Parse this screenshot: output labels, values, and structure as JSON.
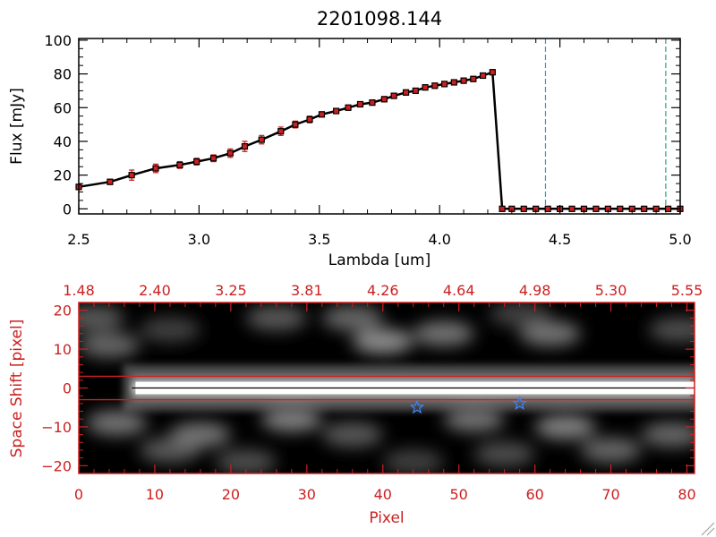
{
  "figure_title": "2201098.144",
  "colors": {
    "spectrum_line": "#000000",
    "marker": "#cc2020",
    "errorbar": "#cc2020",
    "lower_axes": "#cc2020",
    "vline_blue": "#3399dd",
    "vline_green": "#22aa77",
    "star_marker": "#3b82f6",
    "image_background": "#000000"
  },
  "chart_data": [
    {
      "type": "line",
      "title": "2201098.144",
      "xlabel": "Lambda [um]",
      "ylabel": "Flux [mJy]",
      "xlim": [
        2.5,
        5.0
      ],
      "ylim": [
        -3,
        101
      ],
      "xticks": [
        2.5,
        3.0,
        3.5,
        4.0,
        4.5,
        5.0
      ],
      "xtick_labels": [
        "2.5",
        "3.0",
        "3.5",
        "4.0",
        "4.5",
        "5.0"
      ],
      "yticks": [
        0,
        20,
        40,
        60,
        80,
        100
      ],
      "ytick_labels": [
        "0",
        "20",
        "40",
        "60",
        "80",
        "100"
      ],
      "grid": false,
      "vertical_lines": [
        {
          "x": 4.44,
          "style": "dashed",
          "color": "#3399dd"
        },
        {
          "x": 4.94,
          "style": "dashed",
          "color": "#22aa77"
        }
      ],
      "series": [
        {
          "x": [
            2.5,
            2.63,
            2.72,
            2.82,
            2.92,
            2.99,
            3.06,
            3.13,
            3.19,
            3.26,
            3.34,
            3.4,
            3.46,
            3.51,
            3.57,
            3.62,
            3.67,
            3.72,
            3.77,
            3.81,
            3.86,
            3.9,
            3.94,
            3.98,
            4.02,
            4.06,
            4.1,
            4.14,
            4.18,
            4.22,
            4.26,
            4.3,
            4.35,
            4.4,
            4.45,
            4.5,
            4.55,
            4.6,
            4.65,
            4.7,
            4.75,
            4.8,
            4.85,
            4.9,
            4.95,
            5.0
          ],
          "y": [
            13,
            16,
            20,
            24,
            26,
            28,
            30,
            33,
            37,
            41,
            46,
            50,
            53,
            56,
            58,
            60,
            62,
            63,
            65,
            67,
            69,
            70,
            72,
            73,
            74,
            75,
            76,
            77,
            79,
            81,
            0,
            0,
            0,
            0,
            0,
            0,
            0,
            0,
            0,
            0,
            0,
            0,
            0,
            0,
            0,
            0
          ],
          "yerr": [
            1.5,
            1.5,
            3,
            2.5,
            2,
            2,
            2,
            2.5,
            3,
            2.5,
            2.5,
            2,
            2,
            1.5,
            1.5,
            1.5,
            1.5,
            1.5,
            1.5,
            1.5,
            1.5,
            1.5,
            1.5,
            1.5,
            1.5,
            1.5,
            1.5,
            1.5,
            1.5,
            1.5,
            0,
            0,
            0,
            0,
            0,
            0,
            0,
            0,
            0,
            0,
            0,
            0,
            0,
            0,
            0,
            0
          ]
        }
      ]
    },
    {
      "type": "heatmap",
      "xlabel": "Pixel",
      "ylabel": "Space Shift [pixel]",
      "xlim": [
        0,
        81
      ],
      "ylim": [
        -22,
        22
      ],
      "xticks": [
        0,
        10,
        20,
        30,
        40,
        50,
        60,
        70,
        80
      ],
      "xtick_labels": [
        "0",
        "10",
        "20",
        "30",
        "40",
        "50",
        "60",
        "70",
        "80"
      ],
      "yticks": [
        -20,
        -10,
        0,
        10,
        20
      ],
      "ytick_labels": [
        "−20",
        "−10",
        "0",
        "10",
        "20"
      ],
      "top_ticks": [
        0,
        10,
        20,
        30,
        40,
        50,
        60,
        70,
        80
      ],
      "top_tick_labels": [
        "1.48",
        "2.40",
        "3.25",
        "3.81",
        "4.26",
        "4.64",
        "4.98",
        "5.30",
        "5.55"
      ],
      "extraction_lines": [
        3,
        -3
      ],
      "center_line": 0,
      "star_markers": [
        {
          "x": 44.5,
          "y": -5
        },
        {
          "x": 58,
          "y": -4
        }
      ],
      "trace": {
        "x_start": 7,
        "x_end": 81,
        "peak_intensity": 1.0
      },
      "blobs": [
        {
          "x": 40,
          "y": 12,
          "intensity": 0.55
        },
        {
          "x": 48,
          "y": 14,
          "intensity": 0.45
        },
        {
          "x": 26,
          "y": 18,
          "intensity": 0.35
        },
        {
          "x": 36,
          "y": 18,
          "intensity": 0.4
        },
        {
          "x": 62,
          "y": 14,
          "intensity": 0.45
        },
        {
          "x": 79,
          "y": 15,
          "intensity": 0.3
        },
        {
          "x": 58,
          "y": 19,
          "intensity": 0.25
        },
        {
          "x": 4,
          "y": 11,
          "intensity": 0.4
        },
        {
          "x": 2,
          "y": 18,
          "intensity": 0.35
        },
        {
          "x": 12,
          "y": 15,
          "intensity": 0.25
        },
        {
          "x": 5,
          "y": -9,
          "intensity": 0.45
        },
        {
          "x": 12,
          "y": -16,
          "intensity": 0.35
        },
        {
          "x": 16,
          "y": -12,
          "intensity": 0.45
        },
        {
          "x": 28,
          "y": -8,
          "intensity": 0.5
        },
        {
          "x": 36,
          "y": -12,
          "intensity": 0.35
        },
        {
          "x": 52,
          "y": -8,
          "intensity": 0.45
        },
        {
          "x": 64,
          "y": -10,
          "intensity": 0.5
        },
        {
          "x": 70,
          "y": -16,
          "intensity": 0.4
        },
        {
          "x": 78,
          "y": -12,
          "intensity": 0.4
        },
        {
          "x": 22,
          "y": -19,
          "intensity": 0.3
        },
        {
          "x": 56,
          "y": -17,
          "intensity": 0.3
        },
        {
          "x": 44,
          "y": -19,
          "intensity": 0.25
        }
      ]
    }
  ]
}
